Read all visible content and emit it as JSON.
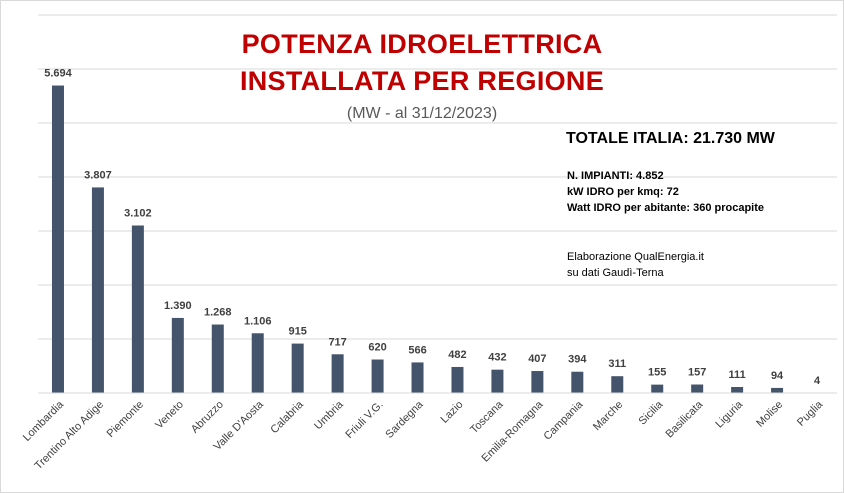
{
  "title": {
    "line1": "POTENZA IDROELETTRICA",
    "line2": "INSTALLATA PER REGIONE"
  },
  "subtitle": "(MW - al 31/12/2023)",
  "summary": {
    "total": "TOTALE ITALIA:  21.730 MW",
    "impianti": "N. IMPIANTI:  4.852",
    "kw_idro": "kW IDRO  per kmq: 72",
    "watt_idro": "Watt IDRO  per abitante: 360 procapite"
  },
  "credits": {
    "line1": "Elaborazione QualEnergia.it",
    "line2": "su dati Gaudì-Terna"
  },
  "colors": {
    "bar": "#44546a",
    "title": "#c00000",
    "gridline": "#d9d9d9"
  },
  "chart_data": {
    "type": "bar",
    "categories": [
      "Lombardia",
      "Trentino Alto Adige",
      "Piemonte",
      "Veneto",
      "Abruzzo",
      "Valle D'Aosta",
      "Calabria",
      "Umbria",
      "Friuli V.G.",
      "Sardegna",
      "Lazio",
      "Toscana",
      "Emilia-Romagna",
      "Campania",
      "Marche",
      "Sicilia",
      "Basilicata",
      "Liguria",
      "Molise",
      "Puglia"
    ],
    "values": [
      5694,
      3807,
      3102,
      1390,
      1268,
      1106,
      915,
      717,
      620,
      566,
      482,
      432,
      407,
      394,
      311,
      155,
      157,
      111,
      94,
      4
    ],
    "value_labels": [
      "5.694",
      "3.807",
      "3.102",
      "1.390",
      "1.268",
      "1.106",
      "915",
      "717",
      "620",
      "566",
      "482",
      "432",
      "407",
      "394",
      "311",
      "155",
      "157",
      "111",
      "94",
      "4"
    ],
    "ylim": [
      0,
      7000
    ],
    "grid": true,
    "xlabel": "",
    "ylabel": ""
  }
}
